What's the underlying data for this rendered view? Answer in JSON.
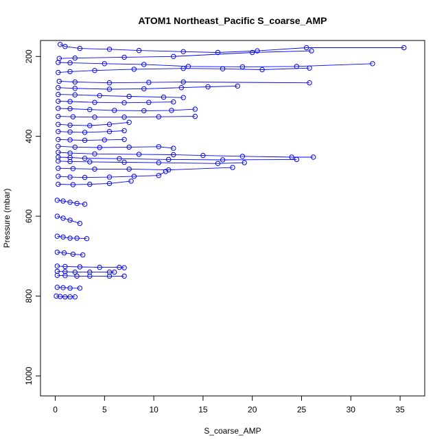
{
  "chart_data": {
    "type": "scatter",
    "title": "ATOM1 Northeast_Pacific S_coarse_AMP",
    "xlabel": "S_coarse_AMP",
    "ylabel": "Pressure (mbar)",
    "xlim": [
      -1.5,
      37.5
    ],
    "ylim": [
      1050,
      160
    ],
    "y_reversed": true,
    "x_ticks": [
      0,
      5,
      10,
      15,
      20,
      25,
      30,
      35
    ],
    "y_ticks": [
      200,
      400,
      600,
      800,
      1000
    ],
    "x_tick_labels": [
      "0",
      "5",
      "10",
      "15",
      "20",
      "25",
      "30",
      "35"
    ],
    "y_tick_labels": [
      "200",
      "400",
      "600",
      "800",
      "1000"
    ],
    "grid": false,
    "legend": "none",
    "marker": "open-circle",
    "color": "#0000ff",
    "series": [
      {
        "x": [
          0.5,
          1.0,
          2.5,
          5.5,
          8.5,
          13.0,
          16.5,
          20.5,
          25.5,
          35.4
        ],
        "y": [
          170,
          175,
          180,
          182,
          185,
          188,
          190,
          186,
          178,
          178
        ]
      },
      {
        "x": [
          0.4,
          2.0,
          7.0,
          12.0,
          20.0,
          26.0
        ],
        "y": [
          205,
          204,
          202,
          200,
          190,
          186
        ]
      },
      {
        "x": [
          0.3,
          1.5,
          5.0,
          9.0,
          13.5,
          19.0,
          24.5,
          32.2
        ],
        "y": [
          215,
          216,
          218,
          220,
          225,
          226,
          225,
          218
        ]
      },
      {
        "x": [
          0.3,
          1.5,
          4.0,
          8.0,
          13.0,
          17.0,
          21.0,
          25.8
        ],
        "y": [
          240,
          238,
          235,
          232,
          230,
          231,
          233,
          229
        ]
      },
      {
        "x": [
          0.4,
          2.0,
          5.5,
          9.5,
          13.0,
          25.8
        ],
        "y": [
          262,
          264,
          266,
          265,
          264,
          266
        ]
      },
      {
        "x": [
          0.3,
          2.0,
          5.5,
          9.0,
          12.8,
          15.5,
          18.5
        ],
        "y": [
          278,
          280,
          282,
          281,
          278,
          276,
          274
        ]
      },
      {
        "x": [
          0.3,
          2.0,
          4.5,
          7.5,
          11.0,
          13.0
        ],
        "y": [
          295,
          296,
          298,
          300,
          302,
          303
        ]
      },
      {
        "x": [
          0.3,
          1.5,
          4.0,
          7.0,
          9.5,
          12.0
        ],
        "y": [
          312,
          313,
          315,
          316,
          315,
          314
        ]
      },
      {
        "x": [
          0.3,
          1.5,
          3.5,
          6.0,
          9.0,
          11.8,
          14.2
        ],
        "y": [
          330,
          331,
          333,
          335,
          336,
          335,
          332
        ]
      },
      {
        "x": [
          0.3,
          1.8,
          4.0,
          7.0,
          10.5,
          14.2
        ],
        "y": [
          350,
          351,
          352,
          352,
          351,
          350
        ]
      },
      {
        "x": [
          0.3,
          1.5,
          3.5,
          5.5,
          7.5
        ],
        "y": [
          370,
          372,
          373,
          370,
          365
        ]
      },
      {
        "x": [
          0.3,
          1.5,
          3.0,
          5.5,
          7.0
        ],
        "y": [
          388,
          389,
          390,
          388,
          386
        ]
      },
      {
        "x": [
          0.3,
          1.5,
          3.0,
          5.0,
          7.0
        ],
        "y": [
          408,
          409,
          410,
          409,
          408
        ]
      },
      {
        "x": [
          0.3,
          2.0,
          4.5,
          7.5,
          10.5,
          12.0
        ],
        "y": [
          425,
          427,
          428,
          427,
          426,
          430
        ]
      },
      {
        "x": [
          0.3,
          1.5,
          4.0,
          8.5,
          12.0,
          15.0,
          19.0,
          24.0,
          26.2
        ],
        "y": [
          440,
          442,
          444,
          445,
          446,
          448,
          450,
          452,
          452
        ]
      },
      {
        "x": [
          0.3,
          1.5,
          3.0,
          6.5,
          11.5,
          17.0,
          24.5
        ],
        "y": [
          452,
          453,
          455,
          456,
          458,
          459,
          458
        ]
      },
      {
        "x": [
          0.3,
          1.5,
          3.5,
          7.0,
          10.5,
          16.5,
          19.2
        ],
        "y": [
          462,
          463,
          464,
          465,
          466,
          468,
          466
        ]
      },
      {
        "x": [
          0.3,
          1.8,
          4.0,
          7.5,
          11.5,
          18.0
        ],
        "y": [
          480,
          481,
          482,
          482,
          484,
          478
        ]
      },
      {
        "x": [
          0.3,
          1.5,
          3.0,
          5.5,
          8.0,
          10.5,
          11.2
        ],
        "y": [
          500,
          502,
          503,
          502,
          500,
          498,
          488
        ]
      },
      {
        "x": [
          0.3,
          1.8,
          3.5,
          5.5,
          7.7
        ],
        "y": [
          520,
          521,
          520,
          518,
          512
        ]
      },
      {
        "x": [
          0.2,
          0.8,
          1.5,
          2.2,
          3.0
        ],
        "y": [
          560,
          562,
          565,
          568,
          570
        ]
      },
      {
        "x": [
          0.2,
          0.8,
          1.5,
          2.5
        ],
        "y": [
          600,
          605,
          610,
          618
        ]
      },
      {
        "x": [
          0.2,
          0.8,
          1.5,
          2.2,
          3.2
        ],
        "y": [
          650,
          652,
          655,
          655,
          656
        ]
      },
      {
        "x": [
          0.2,
          0.9,
          1.8,
          2.8
        ],
        "y": [
          690,
          692,
          695,
          697
        ]
      },
      {
        "x": [
          0.2,
          1.0,
          2.5,
          4.5,
          6.5,
          7.0
        ],
        "y": [
          725,
          726,
          727,
          728,
          728,
          729
        ]
      },
      {
        "x": [
          0.2,
          1.0,
          2.0,
          3.5,
          5.5,
          6.0
        ],
        "y": [
          738,
          739,
          740,
          740,
          740,
          740
        ]
      },
      {
        "x": [
          0.2,
          1.0,
          2.2,
          3.5,
          5.5,
          7.0
        ],
        "y": [
          748,
          749,
          750,
          750,
          750,
          750
        ]
      },
      {
        "x": [
          0.2,
          0.8,
          1.5,
          2.5
        ],
        "y": [
          778,
          779,
          780,
          780
        ]
      },
      {
        "x": [
          0.1,
          0.5,
          1.0,
          1.5,
          2.0
        ],
        "y": [
          800,
          801,
          802,
          802,
          802
        ]
      }
    ]
  }
}
